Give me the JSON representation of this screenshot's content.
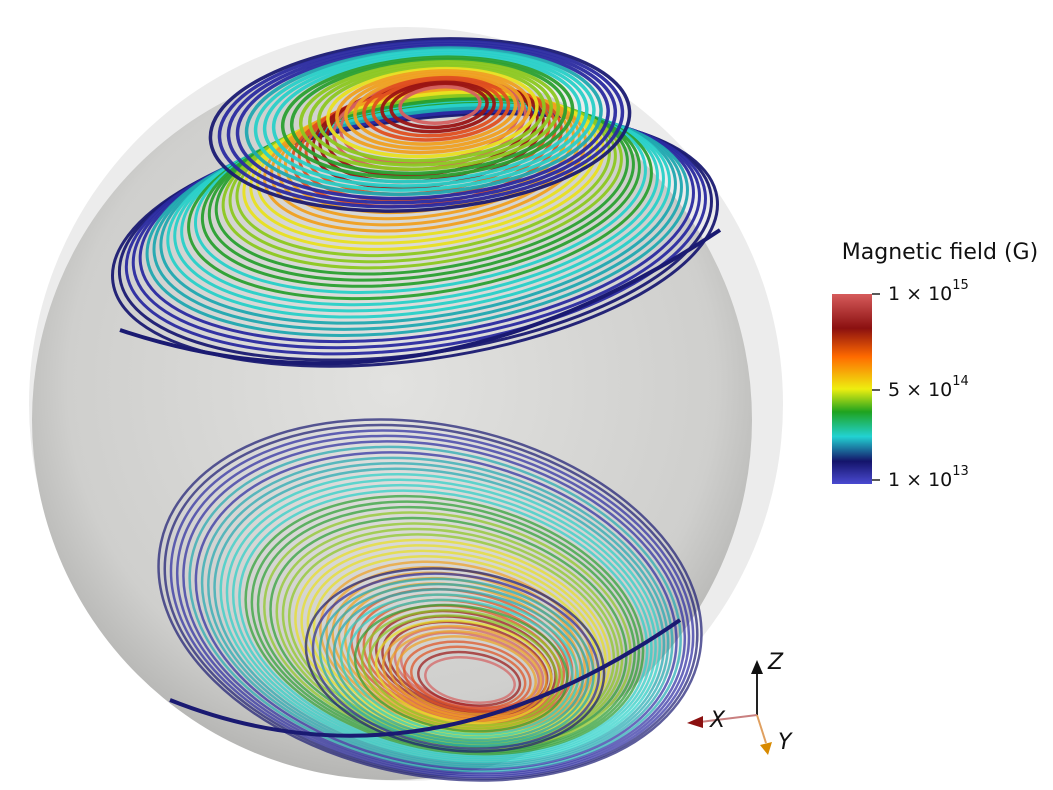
{
  "colorbar": {
    "title": "Magnetic field (G)",
    "ticks": [
      {
        "base": "1 × 10",
        "exponent": "15"
      },
      {
        "base": "5 × 10",
        "exponent": "14"
      },
      {
        "base": "1 × 10",
        "exponent": "13"
      }
    ]
  },
  "axes": {
    "z": "Z",
    "x": "X",
    "y": "Y"
  }
}
